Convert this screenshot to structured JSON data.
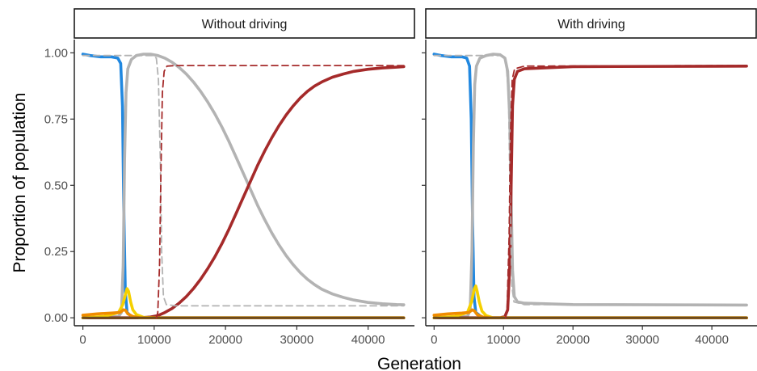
{
  "chart_data": {
    "type": "line",
    "xlabel": "Generation",
    "ylabel": "Proportion of population",
    "xlim": [
      -1200,
      46500
    ],
    "ylim": [
      -0.03,
      1.05
    ],
    "x_ticks": [
      0,
      10000,
      20000,
      30000,
      40000
    ],
    "x_tick_labels": [
      "0",
      "10000",
      "20000",
      "30000",
      "40000"
    ],
    "y_ticks": [
      0,
      0.25,
      0.5,
      0.75,
      1
    ],
    "y_tick_labels": [
      "0.00",
      "0.25",
      "0.50",
      "0.75",
      "1.00"
    ],
    "grid": false,
    "legend": "none",
    "colors": {
      "blue": "#2188e0",
      "gray": "#b3b3b3",
      "red": "#a52a2a",
      "yellow": "#f5d000",
      "orange": "#f08c00",
      "brown": "#6b4a1e"
    },
    "panels": [
      {
        "title": "Without driving",
        "series": [
          {
            "color": "blue",
            "style": "solid",
            "points": [
              [
                0,
                0.995
              ],
              [
                1000,
                0.99
              ],
              [
                2500,
                0.985
              ],
              [
                4000,
                0.985
              ],
              [
                4900,
                0.98
              ],
              [
                5300,
                0.96
              ],
              [
                5550,
                0.8
              ],
              [
                5750,
                0.4
              ],
              [
                5950,
                0.1
              ],
              [
                6200,
                0.02
              ],
              [
                7000,
                0.0
              ],
              [
                45000,
                0.0
              ]
            ]
          },
          {
            "color": "gray",
            "style": "solid",
            "points": [
              [
                0,
                0.0
              ],
              [
                5000,
                0.005
              ],
              [
                5400,
                0.02
              ],
              [
                5650,
                0.2
              ],
              [
                5850,
                0.6
              ],
              [
                6050,
                0.85
              ],
              [
                6300,
                0.94
              ],
              [
                6800,
                0.975
              ],
              [
                7500,
                0.99
              ],
              [
                8500,
                0.995
              ],
              [
                9500,
                0.995
              ],
              [
                10500,
                0.99
              ],
              [
                11500,
                0.98
              ],
              [
                12500,
                0.965
              ],
              [
                13500,
                0.945
              ],
              [
                14500,
                0.92
              ],
              [
                15500,
                0.89
              ],
              [
                16500,
                0.855
              ],
              [
                17500,
                0.815
              ],
              [
                18500,
                0.77
              ],
              [
                19500,
                0.72
              ],
              [
                20500,
                0.665
              ],
              [
                21500,
                0.605
              ],
              [
                22500,
                0.545
              ],
              [
                23500,
                0.485
              ],
              [
                24500,
                0.425
              ],
              [
                25500,
                0.37
              ],
              [
                26500,
                0.32
              ],
              [
                27500,
                0.275
              ],
              [
                28500,
                0.235
              ],
              [
                29500,
                0.2
              ],
              [
                30500,
                0.17
              ],
              [
                31500,
                0.145
              ],
              [
                32500,
                0.125
              ],
              [
                33500,
                0.108
              ],
              [
                35000,
                0.09
              ],
              [
                36500,
                0.077
              ],
              [
                38000,
                0.067
              ],
              [
                40000,
                0.058
              ],
              [
                42000,
                0.053
              ],
              [
                44000,
                0.05
              ],
              [
                45000,
                0.049
              ]
            ]
          },
          {
            "color": "red",
            "style": "solid",
            "points": [
              [
                0,
                0.0
              ],
              [
                8000,
                0.0
              ],
              [
                9500,
                0.003
              ],
              [
                10500,
                0.008
              ],
              [
                11500,
                0.02
              ],
              [
                12500,
                0.035
              ],
              [
                13500,
                0.055
              ],
              [
                14500,
                0.08
              ],
              [
                15500,
                0.11
              ],
              [
                16500,
                0.145
              ],
              [
                17500,
                0.185
              ],
              [
                18500,
                0.23
              ],
              [
                19500,
                0.28
              ],
              [
                20500,
                0.335
              ],
              [
                21500,
                0.395
              ],
              [
                22500,
                0.455
              ],
              [
                23500,
                0.515
              ],
              [
                24500,
                0.575
              ],
              [
                25500,
                0.63
              ],
              [
                26500,
                0.68
              ],
              [
                27500,
                0.725
              ],
              [
                28500,
                0.765
              ],
              [
                29500,
                0.8
              ],
              [
                30500,
                0.83
              ],
              [
                31500,
                0.855
              ],
              [
                32500,
                0.875
              ],
              [
                33500,
                0.89
              ],
              [
                35000,
                0.908
              ],
              [
                36500,
                0.92
              ],
              [
                38000,
                0.93
              ],
              [
                40000,
                0.938
              ],
              [
                42000,
                0.943
              ],
              [
                44000,
                0.946
              ],
              [
                45000,
                0.948
              ]
            ]
          },
          {
            "color": "yellow",
            "style": "solid",
            "points": [
              [
                0,
                0.0
              ],
              [
                3000,
                0.005
              ],
              [
                5000,
                0.02
              ],
              [
                5600,
                0.05
              ],
              [
                6000,
                0.09
              ],
              [
                6200,
                0.11
              ],
              [
                6400,
                0.1
              ],
              [
                6700,
                0.06
              ],
              [
                7000,
                0.03
              ],
              [
                7500,
                0.012
              ],
              [
                8500,
                0.002
              ],
              [
                10000,
                0.0
              ],
              [
                45000,
                0.0
              ]
            ]
          },
          {
            "color": "orange",
            "style": "solid",
            "points": [
              [
                0,
                0.01
              ],
              [
                2000,
                0.015
              ],
              [
                4000,
                0.018
              ],
              [
                5200,
                0.02
              ],
              [
                5700,
                0.03
              ],
              [
                6000,
                0.028
              ],
              [
                6300,
                0.015
              ],
              [
                7000,
                0.005
              ],
              [
                8000,
                0.0
              ],
              [
                45000,
                0.0
              ]
            ]
          },
          {
            "color": "brown",
            "style": "solid",
            "points": [
              [
                0,
                0.0
              ],
              [
                45000,
                0.0
              ]
            ]
          },
          {
            "color": "gray",
            "style": "dashed",
            "points": [
              [
                0,
                0.99
              ],
              [
                5000,
                0.99
              ],
              [
                9800,
                0.99
              ],
              [
                10300,
                0.98
              ],
              [
                10600,
                0.9
              ],
              [
                10850,
                0.6
              ],
              [
                11050,
                0.25
              ],
              [
                11300,
                0.08
              ],
              [
                11700,
                0.05
              ],
              [
                13000,
                0.045
              ],
              [
                45000,
                0.045
              ]
            ]
          },
          {
            "color": "red",
            "style": "dashed",
            "points": [
              [
                10300,
                0.0
              ],
              [
                10500,
                0.02
              ],
              [
                10750,
                0.2
              ],
              [
                10950,
                0.55
              ],
              [
                11150,
                0.85
              ],
              [
                11400,
                0.93
              ],
              [
                11800,
                0.95
              ],
              [
                13000,
                0.952
              ],
              [
                45000,
                0.952
              ]
            ]
          }
        ]
      },
      {
        "title": "With driving",
        "series": [
          {
            "color": "blue",
            "style": "solid",
            "points": [
              [
                0,
                0.995
              ],
              [
                1000,
                0.99
              ],
              [
                2500,
                0.985
              ],
              [
                4000,
                0.985
              ],
              [
                4700,
                0.98
              ],
              [
                5100,
                0.95
              ],
              [
                5350,
                0.75
              ],
              [
                5550,
                0.35
              ],
              [
                5750,
                0.08
              ],
              [
                6000,
                0.02
              ],
              [
                7000,
                0.0
              ],
              [
                45000,
                0.0
              ]
            ]
          },
          {
            "color": "gray",
            "style": "solid",
            "points": [
              [
                0,
                0.0
              ],
              [
                4800,
                0.005
              ],
              [
                5200,
                0.03
              ],
              [
                5450,
                0.25
              ],
              [
                5650,
                0.65
              ],
              [
                5850,
                0.88
              ],
              [
                6100,
                0.95
              ],
              [
                6600,
                0.98
              ],
              [
                7500,
                0.99
              ],
              [
                8500,
                0.995
              ],
              [
                9500,
                0.993
              ],
              [
                10200,
                0.98
              ],
              [
                10600,
                0.93
              ],
              [
                10900,
                0.75
              ],
              [
                11100,
                0.45
              ],
              [
                11300,
                0.18
              ],
              [
                11550,
                0.08
              ],
              [
                12000,
                0.06
              ],
              [
                13000,
                0.055
              ],
              [
                20000,
                0.05
              ],
              [
                45000,
                0.048
              ]
            ]
          },
          {
            "color": "red",
            "style": "solid",
            "points": [
              [
                0,
                0.0
              ],
              [
                9500,
                0.0
              ],
              [
                10200,
                0.005
              ],
              [
                10600,
                0.03
              ],
              [
                10900,
                0.2
              ],
              [
                11100,
                0.5
              ],
              [
                11300,
                0.8
              ],
              [
                11550,
                0.9
              ],
              [
                12000,
                0.93
              ],
              [
                13000,
                0.94
              ],
              [
                20000,
                0.948
              ],
              [
                45000,
                0.95
              ]
            ]
          },
          {
            "color": "yellow",
            "style": "solid",
            "points": [
              [
                0,
                0.0
              ],
              [
                3000,
                0.005
              ],
              [
                4800,
                0.02
              ],
              [
                5400,
                0.06
              ],
              [
                5800,
                0.11
              ],
              [
                6000,
                0.12
              ],
              [
                6200,
                0.1
              ],
              [
                6500,
                0.06
              ],
              [
                6900,
                0.025
              ],
              [
                7500,
                0.008
              ],
              [
                8500,
                0.0
              ],
              [
                45000,
                0.0
              ]
            ]
          },
          {
            "color": "orange",
            "style": "solid",
            "points": [
              [
                0,
                0.01
              ],
              [
                2000,
                0.015
              ],
              [
                4000,
                0.018
              ],
              [
                5000,
                0.02
              ],
              [
                5500,
                0.03
              ],
              [
                5800,
                0.026
              ],
              [
                6200,
                0.012
              ],
              [
                7000,
                0.003
              ],
              [
                8000,
                0.0
              ],
              [
                45000,
                0.0
              ]
            ]
          },
          {
            "color": "brown",
            "style": "solid",
            "points": [
              [
                0,
                0.0
              ],
              [
                45000,
                0.0
              ]
            ]
          },
          {
            "color": "gray",
            "style": "dashed",
            "points": [
              [
                0,
                0.99
              ],
              [
                5000,
                0.99
              ],
              [
                9800,
                0.99
              ],
              [
                10300,
                0.98
              ],
              [
                10700,
                0.85
              ],
              [
                10950,
                0.45
              ],
              [
                11200,
                0.12
              ],
              [
                11500,
                0.06
              ],
              [
                13000,
                0.05
              ],
              [
                45000,
                0.048
              ]
            ]
          },
          {
            "color": "red",
            "style": "dashed",
            "points": [
              [
                10300,
                0.0
              ],
              [
                10500,
                0.03
              ],
              [
                10800,
                0.3
              ],
              [
                11000,
                0.7
              ],
              [
                11250,
                0.9
              ],
              [
                11600,
                0.94
              ],
              [
                13000,
                0.95
              ],
              [
                45000,
                0.952
              ]
            ]
          }
        ]
      }
    ]
  }
}
